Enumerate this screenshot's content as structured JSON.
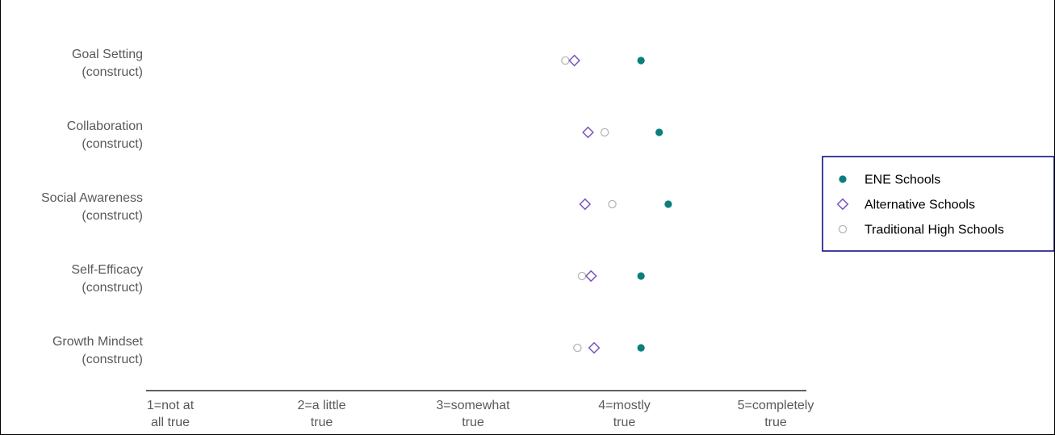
{
  "chart_data": {
    "type": "scatter",
    "orientation": "horizontal",
    "categories": [
      [
        "Goal Setting",
        "(construct)"
      ],
      [
        "Collaboration",
        "(construct)"
      ],
      [
        "Social Awareness",
        "(construct)"
      ],
      [
        "Self-Efficacy",
        "(construct)"
      ],
      [
        "Growth Mindset",
        "(construct)"
      ]
    ],
    "xlim": [
      1,
      5
    ],
    "xticks": [
      {
        "value": 1,
        "label": [
          "1=not at",
          "all true"
        ]
      },
      {
        "value": 2,
        "label": [
          "2=a little",
          "true"
        ]
      },
      {
        "value": 3,
        "label": [
          "3=somewhat",
          "true"
        ]
      },
      {
        "value": 4,
        "label": [
          "4=mostly",
          "true"
        ]
      },
      {
        "value": 5,
        "label": [
          "5=completely",
          "true"
        ]
      }
    ],
    "series": [
      {
        "name": "ENE Schools",
        "marker": "filled-circle",
        "color": "#0b7e7e",
        "values": [
          4.11,
          4.23,
          4.29,
          4.11,
          4.11
        ]
      },
      {
        "name": "Alternative Schools",
        "marker": "open-diamond",
        "color": "#7a55c0",
        "values": [
          3.67,
          3.76,
          3.74,
          3.78,
          3.8
        ]
      },
      {
        "name": "Traditional High Schools",
        "marker": "open-circle",
        "color": "#b8b8b8",
        "values": [
          3.61,
          3.87,
          3.92,
          3.72,
          3.69
        ]
      }
    ],
    "legend": {
      "placement": "right",
      "border_color": "#000080"
    },
    "grid": false
  }
}
